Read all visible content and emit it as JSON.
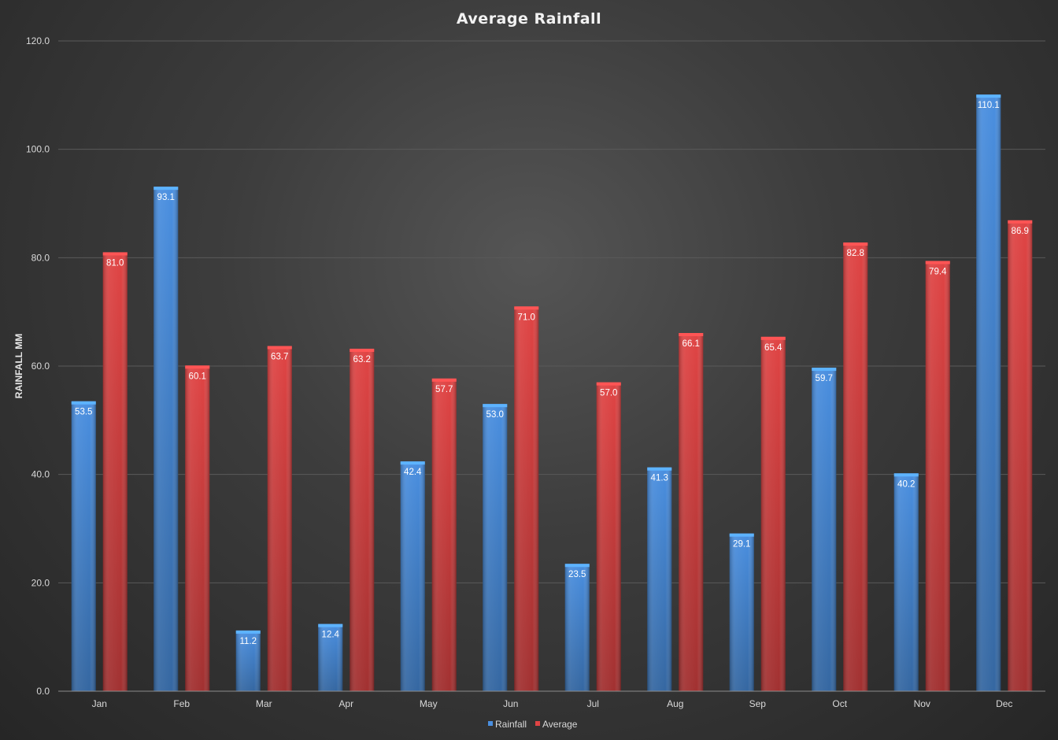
{
  "colors": {
    "rainfall": "#4a8fe0",
    "average": "#e04444",
    "grid": "#5a5a5a",
    "axis": "#8c8c8c"
  },
  "chart_data": {
    "type": "bar",
    "title": "Average Rainfall",
    "xlabel": "",
    "ylabel": "RAINFALL MM",
    "ylim": [
      0,
      120
    ],
    "yticks": [
      "0.0",
      "20.0",
      "40.0",
      "60.0",
      "80.0",
      "100.0",
      "120.0"
    ],
    "grid": true,
    "legend_position": "bottom",
    "categories": [
      "Jan",
      "Feb",
      "Mar",
      "Apr",
      "May",
      "Jun",
      "Jul",
      "Aug",
      "Sep",
      "Oct",
      "Nov",
      "Dec"
    ],
    "series": [
      {
        "name": "Rainfall",
        "color": "#4a8fe0",
        "values": [
          53.5,
          93.1,
          11.2,
          12.4,
          42.4,
          53.0,
          23.5,
          41.3,
          29.1,
          59.7,
          40.2,
          110.1
        ],
        "labels": [
          "53.5",
          "93.1",
          "11.2",
          "12.4",
          "42.4",
          "53.0",
          "23.5",
          "41.3",
          "29.1",
          "59.7",
          "40.2",
          "110.1"
        ]
      },
      {
        "name": "Average",
        "color": "#e04444",
        "values": [
          81.0,
          60.1,
          63.7,
          63.2,
          57.7,
          71.0,
          57.0,
          66.1,
          65.4,
          82.8,
          79.4,
          86.9
        ],
        "labels": [
          "81.0",
          "60.1",
          "63.7",
          "63.2",
          "57.7",
          "71.0",
          "57.0",
          "66.1",
          "65.4",
          "82.8",
          "79.4",
          "86.9"
        ]
      }
    ]
  }
}
